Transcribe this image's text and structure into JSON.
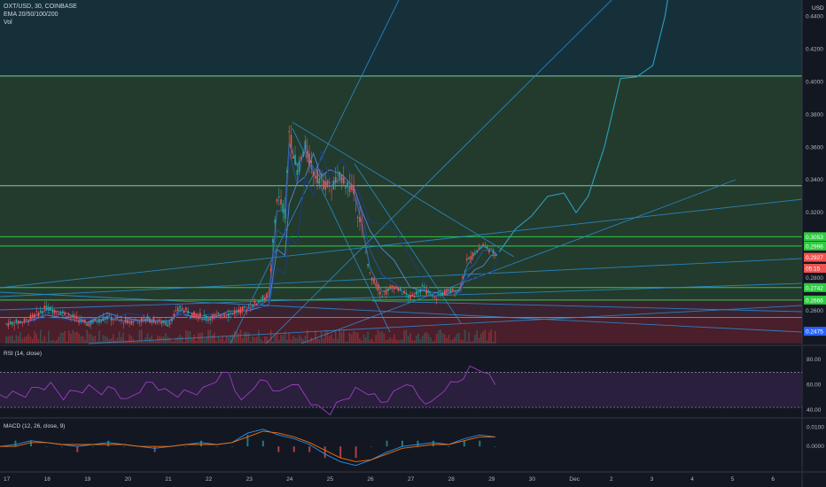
{
  "header": {
    "symbol_line": "OXT/USD, 30, COINBASE",
    "ema_label": "EMA 20/50/100/200",
    "vol_label": "Vol",
    "currency": "USD"
  },
  "colors": {
    "background": "#131722",
    "upper_zone": "#16303a",
    "middle_zone": "#233b2c",
    "lower_zone": "#3a2330",
    "support_zone": "#4a1e2a",
    "trendline": "#2a8fd6",
    "level_line": "#2ecc40",
    "price_up": "#26a69a",
    "price_down": "#ef5350",
    "rsi_line": "#9b3fbf",
    "rsi_fill": "#2a1f3d",
    "macd_line": "#2196f3",
    "signal_line": "#ff6d00"
  },
  "chart_data": [
    {
      "type": "candlestick",
      "title": "OXT/USD, 30, COINBASE",
      "ylim": [
        0.24,
        0.45
      ],
      "ytick_values": [
        0.26,
        0.28,
        0.3,
        0.32,
        0.34,
        0.36,
        0.38,
        0.4,
        0.42,
        0.44
      ],
      "ytick_labels": [
        "0.2600",
        "0.2800",
        "0.3000",
        "0.3200",
        "0.3400",
        "0.3600",
        "0.3800",
        "0.4000",
        "0.4200",
        "0.4400"
      ],
      "xtick_labels": [
        "17",
        "18",
        "19",
        "20",
        "21",
        "22",
        "23",
        "24",
        "25",
        "26",
        "27",
        "28",
        "29",
        "30",
        "Dec",
        "2",
        "3",
        "4",
        "5",
        "6"
      ],
      "price_tags": [
        {
          "label": "0.3053",
          "value": 0.3053,
          "color": "#2ecc40"
        },
        {
          "label": "0.2996",
          "value": 0.2996,
          "color": "#2ecc40"
        },
        {
          "label": "0.2927",
          "value": 0.2927,
          "color": "#ef5350"
        },
        {
          "label": "05:15",
          "value": 0.286,
          "color": "#ef5350"
        },
        {
          "label": "0.2742",
          "value": 0.2742,
          "color": "#2ecc40"
        },
        {
          "label": "0.2666",
          "value": 0.2666,
          "color": "#2ecc40"
        },
        {
          "label": "0.2475",
          "value": 0.2475,
          "color": "#2a62ff"
        }
      ],
      "horizontal_levels": [
        0.4035,
        0.3365,
        0.3053,
        0.2996,
        0.2742,
        0.2666,
        0.256
      ],
      "price_path": [
        [
          0.0,
          0.252
        ],
        [
          0.5,
          0.254
        ],
        [
          1.0,
          0.262
        ],
        [
          1.5,
          0.258
        ],
        [
          2.0,
          0.252
        ],
        [
          2.5,
          0.256
        ],
        [
          3.0,
          0.253
        ],
        [
          3.5,
          0.255
        ],
        [
          4.0,
          0.252
        ],
        [
          4.3,
          0.262
        ],
        [
          4.6,
          0.258
        ],
        [
          5.0,
          0.256
        ],
        [
          5.5,
          0.258
        ],
        [
          6.0,
          0.262
        ],
        [
          6.5,
          0.27
        ],
        [
          6.7,
          0.33
        ],
        [
          6.9,
          0.32
        ],
        [
          7.0,
          0.37
        ],
        [
          7.2,
          0.345
        ],
        [
          7.4,
          0.36
        ],
        [
          7.6,
          0.345
        ],
        [
          7.8,
          0.34
        ],
        [
          8.0,
          0.335
        ],
        [
          8.3,
          0.342
        ],
        [
          8.6,
          0.332
        ],
        [
          8.8,
          0.31
        ],
        [
          9.0,
          0.282
        ],
        [
          9.3,
          0.27
        ],
        [
          9.6,
          0.275
        ],
        [
          10.0,
          0.268
        ],
        [
          10.3,
          0.274
        ],
        [
          10.6,
          0.268
        ],
        [
          10.9,
          0.272
        ],
        [
          11.2,
          0.272
        ],
        [
          11.4,
          0.29
        ],
        [
          11.6,
          0.296
        ],
        [
          11.8,
          0.3
        ],
        [
          12.0,
          0.297
        ],
        [
          12.15,
          0.293
        ]
      ],
      "projection_path": [
        [
          12.2,
          0.296
        ],
        [
          12.6,
          0.31
        ],
        [
          13.0,
          0.318
        ],
        [
          13.4,
          0.33
        ],
        [
          13.8,
          0.332
        ],
        [
          14.1,
          0.32
        ],
        [
          14.4,
          0.33
        ],
        [
          14.8,
          0.36
        ],
        [
          15.2,
          0.402
        ],
        [
          15.6,
          0.403
        ],
        [
          16.0,
          0.41
        ],
        [
          16.3,
          0.44
        ],
        [
          16.4,
          0.455
        ]
      ]
    },
    {
      "type": "line",
      "title": "RSI (14, close)",
      "ylim": [
        35,
        90
      ],
      "ytick_values": [
        80,
        60,
        40
      ],
      "ytick_labels": [
        "80.00",
        "60.00",
        "40.00"
      ],
      "bands": [
        70,
        30
      ],
      "values": [
        52,
        55,
        50,
        58,
        62,
        48,
        55,
        60,
        52,
        57,
        49,
        54,
        62,
        57,
        50,
        54,
        58,
        62,
        70,
        48,
        57,
        63,
        55,
        60,
        52,
        44,
        36,
        48,
        58,
        52,
        46,
        55,
        60,
        50,
        47,
        55,
        62,
        75,
        70,
        60
      ]
    },
    {
      "type": "line",
      "title": "MACD (12, 26, close, 9)",
      "ylim": [
        -0.012,
        0.014
      ],
      "ytick_values": [
        0.01,
        0.0
      ],
      "ytick_labels": [
        "0.0100",
        "0.0000"
      ],
      "series": [
        {
          "values": [
            0.0,
            0.001,
            0.003,
            0.002,
            0.001,
            0.0,
            0.001,
            0.002,
            0.001,
            0.0,
            -0.001,
            0.0,
            0.001,
            0.002,
            0.001,
            0.002,
            0.007,
            0.009,
            0.006,
            0.004,
            0.001,
            -0.004,
            -0.008,
            -0.01,
            -0.007,
            -0.003,
            0.0,
            0.001,
            0.002,
            0.001,
            0.004,
            0.006,
            0.005
          ]
        },
        {
          "values": [
            0.0,
            0.0,
            0.002,
            0.002,
            0.001,
            0.001,
            0.001,
            0.001,
            0.001,
            0.0,
            0.0,
            0.0,
            0.001,
            0.001,
            0.001,
            0.002,
            0.005,
            0.008,
            0.007,
            0.005,
            0.002,
            -0.002,
            -0.006,
            -0.008,
            -0.007,
            -0.004,
            -0.001,
            0.0,
            0.001,
            0.001,
            0.003,
            0.005,
            0.005
          ]
        }
      ]
    }
  ]
}
